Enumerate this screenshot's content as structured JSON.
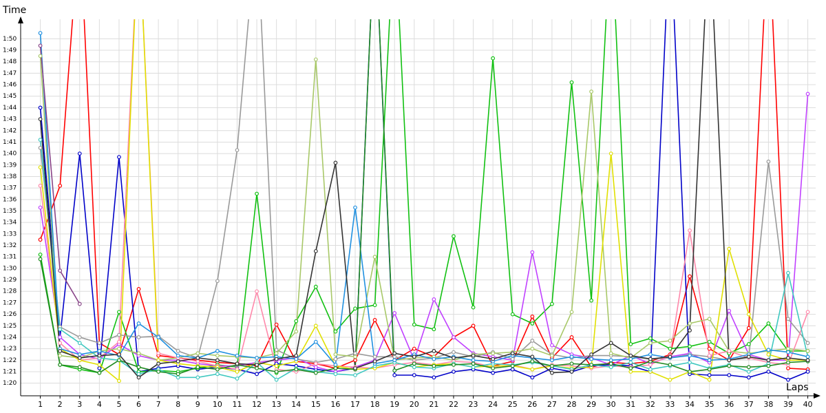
{
  "chart_data": {
    "type": "line",
    "x_label": "Laps",
    "y_label": "Time",
    "x": [
      1,
      2,
      3,
      4,
      5,
      6,
      7,
      8,
      9,
      10,
      11,
      12,
      13,
      14,
      15,
      16,
      17,
      18,
      19,
      20,
      21,
      22,
      23,
      24,
      25,
      26,
      27,
      28,
      29,
      30,
      31,
      32,
      33,
      34,
      35,
      36,
      37,
      38,
      39,
      40
    ],
    "xlim": [
      0,
      40.4
    ],
    "xticks": [
      1,
      2,
      3,
      4,
      5,
      6,
      7,
      8,
      9,
      10,
      11,
      12,
      13,
      14,
      15,
      16,
      17,
      18,
      19,
      20,
      21,
      22,
      23,
      24,
      25,
      26,
      27,
      28,
      29,
      30,
      31,
      32,
      33,
      34,
      35,
      36,
      37,
      38,
      39,
      40
    ],
    "ylim": [
      78.9,
      111.7
    ],
    "yticks": [
      {
        "value": 80,
        "label": "1:20"
      },
      {
        "value": 81,
        "label": "1:21"
      },
      {
        "value": 82,
        "label": "1:22"
      },
      {
        "value": 83,
        "label": "1:23"
      },
      {
        "value": 84,
        "label": "1:24"
      },
      {
        "value": 85,
        "label": "1:25"
      },
      {
        "value": 86,
        "label": "1:26"
      },
      {
        "value": 87,
        "label": "1:27"
      },
      {
        "value": 88,
        "label": "1:28"
      },
      {
        "value": 89,
        "label": "1:29"
      },
      {
        "value": 90,
        "label": "1:30"
      },
      {
        "value": 91,
        "label": "1:31"
      },
      {
        "value": 92,
        "label": "1:32"
      },
      {
        "value": 93,
        "label": "1:33"
      },
      {
        "value": 94,
        "label": "1:34"
      },
      {
        "value": 95,
        "label": "1:35"
      },
      {
        "value": 96,
        "label": "1:36"
      },
      {
        "value": 97,
        "label": "1:37"
      },
      {
        "value": 98,
        "label": "1:38"
      },
      {
        "value": 99,
        "label": "1:39"
      },
      {
        "value": 100,
        "label": "1:40"
      },
      {
        "value": 101,
        "label": "1:41"
      },
      {
        "value": 102,
        "label": "1:42"
      },
      {
        "value": 103,
        "label": "1:43"
      },
      {
        "value": 104,
        "label": "1:44"
      },
      {
        "value": 105,
        "label": "1:45"
      },
      {
        "value": 106,
        "label": "1:46"
      },
      {
        "value": 107,
        "label": "1:47"
      },
      {
        "value": 108,
        "label": "1:48"
      },
      {
        "value": 109,
        "label": "1:49"
      },
      {
        "value": 110,
        "label": "1:50"
      }
    ],
    "grid": true,
    "series": [
      {
        "color": "#ff0000",
        "values": [
          92.5,
          97.2,
          120,
          83.5,
          82.5,
          88.2,
          82.4,
          82.2,
          82.0,
          81.8,
          81.7,
          81.5,
          85.1,
          81.9,
          81.7,
          81.3,
          82.0,
          85.5,
          82.0,
          83.0,
          82.3,
          84.0,
          85.0,
          81.5,
          81.9,
          85.8,
          82.2,
          84.0,
          81.4,
          81.8,
          81.7,
          81.9,
          82.5,
          89.3,
          83.0,
          82.0,
          84.8,
          120,
          81.3,
          81.2
        ]
      },
      {
        "color": "#0000c8",
        "values": [
          104,
          84,
          100,
          81.3,
          99.7,
          81.0,
          81.3,
          81.5,
          81.2,
          81.4,
          81.2,
          80.8,
          81.7,
          81.5,
          81.2,
          81.0,
          81.3,
          120,
          80.7,
          80.7,
          80.5,
          81.0,
          81.2,
          80.9,
          81.2,
          80.5,
          81.3,
          81.0,
          81.5,
          81.6,
          81.5,
          81.0,
          120,
          80.8,
          80.7,
          80.7,
          80.5,
          81.0,
          80.3,
          81.0
        ]
      },
      {
        "color": "#10c010",
        "values": [
          91.2,
          81.6,
          81.2,
          80.9,
          86.2,
          81.0,
          81.1,
          81.0,
          81.3,
          81.6,
          81.4,
          96.5,
          80.9,
          85.4,
          88.4,
          84.5,
          86.5,
          86.8,
          120,
          85.1,
          84.7,
          92.8,
          86.6,
          108.3,
          86.0,
          85.2,
          86.9,
          106.2,
          87.2,
          120,
          83.4,
          83.9,
          83.0,
          83.2,
          83.6,
          82.6,
          83.4,
          85.2,
          82.8,
          82.8
        ]
      },
      {
        "color": "#c040ff",
        "values": [
          95.3,
          84.0,
          82.5,
          82.1,
          83.4,
          82.4,
          82.0,
          82.0,
          81.7,
          81.5,
          81.5,
          81.8,
          82.0,
          82.2,
          81.4,
          81.0,
          81.4,
          82.0,
          86.1,
          82.0,
          87.3,
          84.0,
          82.6,
          82.3,
          82.0,
          91.4,
          83.3,
          82.5,
          82.2,
          81.6,
          82.4,
          81.7,
          82.3,
          82.6,
          81.8,
          86.3,
          82.5,
          82.0,
          82.0,
          105.2
        ]
      },
      {
        "color": "#999999",
        "values": [
          100.5,
          84.9,
          84.0,
          83.5,
          84.2,
          84.0,
          84.1,
          82.8,
          82.2,
          88.9,
          100.3,
          120,
          82.9,
          82.1,
          81.8,
          82.1,
          82.6,
          82.3,
          82.3,
          82.0,
          82.2,
          82.7,
          82.3,
          82.7,
          82.1,
          83.7,
          82.5,
          82.2,
          82.4,
          82.4,
          82.3,
          82.1,
          82.2,
          82.5,
          82.3,
          82.0,
          82.2,
          99.3,
          85.6,
          83.5
        ]
      },
      {
        "color": "#a8c868",
        "values": [
          108.5,
          82.4,
          82.2,
          82.8,
          83.0,
          82.6,
          82.0,
          82.2,
          82.6,
          82.4,
          82.3,
          82.2,
          82.6,
          84.5,
          108.2,
          82.5,
          82.3,
          91.0,
          82.0,
          82.2,
          82.3,
          82.0,
          82.5,
          82.6,
          82.7,
          83.0,
          82.4,
          86.2,
          105.4,
          82.6,
          82.2,
          83.5,
          83.7,
          85.2,
          85.6,
          82.8,
          82.6,
          82.8,
          83.0,
          82.8
        ]
      },
      {
        "color": "#ff88aa",
        "values": [
          97.2,
          83.5,
          82.0,
          82.2,
          83.6,
          120,
          82.6,
          82.2,
          81.9,
          81.5,
          81.2,
          88.0,
          81.2,
          81.0,
          81.7,
          81.5,
          81.4,
          81.3,
          81.6,
          81.8,
          81.6,
          81.9,
          81.8,
          81.4,
          81.6,
          81.2,
          81.6,
          81.5,
          81.3,
          81.5,
          81.4,
          81.6,
          82.4,
          93.3,
          82.4,
          82.8,
          82.2,
          81.8,
          81.6,
          86.2
        ]
      },
      {
        "color": "#e0e000",
        "values": [
          98.8,
          83.0,
          82.0,
          81.6,
          80.2,
          120,
          82.0,
          81.7,
          81.5,
          81.4,
          81.0,
          81.8,
          81.5,
          81.9,
          85.0,
          81.5,
          81.2,
          81.3,
          81.8,
          81.4,
          81.6,
          81.7,
          81.4,
          81.5,
          81.5,
          81.2,
          81.5,
          81.3,
          81.4,
          100.0,
          81.0,
          81.0,
          80.3,
          81.0,
          80.3,
          91.7,
          86.0,
          82.5,
          82.0,
          82.0
        ]
      },
      {
        "color": "#40c8c0",
        "values": [
          101.2,
          84.7,
          83.5,
          82.2,
          82.0,
          80.8,
          81.2,
          80.5,
          80.5,
          80.8,
          80.4,
          81.8,
          80.3,
          81.3,
          81.0,
          80.8,
          80.7,
          81.5,
          81.8,
          81.4,
          81.3,
          81.7,
          81.4,
          81.7,
          81.6,
          81.8,
          81.5,
          81.2,
          81.6,
          81.4,
          81.8,
          81.2,
          81.5,
          81.8,
          81.3,
          81.6,
          81.0,
          81.7,
          89.6,
          82.3
        ]
      },
      {
        "color": "#2090e0",
        "values": [
          110.5,
          83.0,
          82.5,
          82.8,
          82.4,
          85.2,
          84.0,
          82.4,
          82.2,
          82.8,
          82.4,
          82.2,
          82.3,
          82.1,
          83.6,
          81.6,
          95.3,
          81.7,
          82.0,
          82.5,
          82.1,
          82.3,
          82.0,
          81.9,
          82.4,
          82.2,
          82.0,
          82.3,
          82.1,
          82.0,
          82.1,
          82.5,
          82.2,
          82.4,
          82.0,
          82.1,
          82.5,
          82.9,
          82.7,
          82.3
        ]
      },
      {
        "color": "#208a20",
        "values": [
          90.8,
          81.6,
          81.4,
          80.9,
          82.0,
          81.4,
          81.0,
          80.8,
          81.4,
          81.2,
          81.6,
          81.3,
          81.0,
          81.2,
          80.9,
          81.3,
          81.2,
          120,
          81.1,
          81.7,
          81.5,
          81.6,
          81.7,
          81.3,
          81.5,
          81.9,
          81.5,
          81.7,
          81.6,
          81.7,
          81.3,
          81.9,
          81.6,
          81.0,
          81.2,
          81.5,
          81.4,
          81.5,
          81.8,
          81.9
        ]
      },
      {
        "color": "#333333",
        "values": [
          103,
          82.8,
          82.2,
          82.4,
          82.5,
          80.5,
          81.7,
          81.9,
          82.2,
          82.0,
          81.7,
          81.6,
          82.1,
          82.4,
          91.5,
          99.2,
          81.3,
          81.9,
          82.6,
          82.3,
          82.8,
          82.2,
          82.4,
          82.1,
          82.6,
          82.3,
          80.9,
          81.0,
          82.5,
          83.5,
          82.4,
          82.1,
          82.3,
          84.6,
          120,
          82.0,
          82.3,
          82.0,
          82.2,
          82.0
        ]
      },
      {
        "color": "#884488",
        "values": [
          109.4,
          89.8,
          86.9,
          null,
          null,
          null,
          null,
          null,
          null,
          null,
          null,
          null,
          null,
          null,
          null,
          null,
          null,
          null,
          null,
          null,
          null,
          null,
          null,
          null,
          null,
          null,
          null,
          null,
          null,
          null,
          null,
          null,
          null,
          null,
          null,
          null,
          null,
          null,
          null,
          null
        ]
      }
    ]
  }
}
